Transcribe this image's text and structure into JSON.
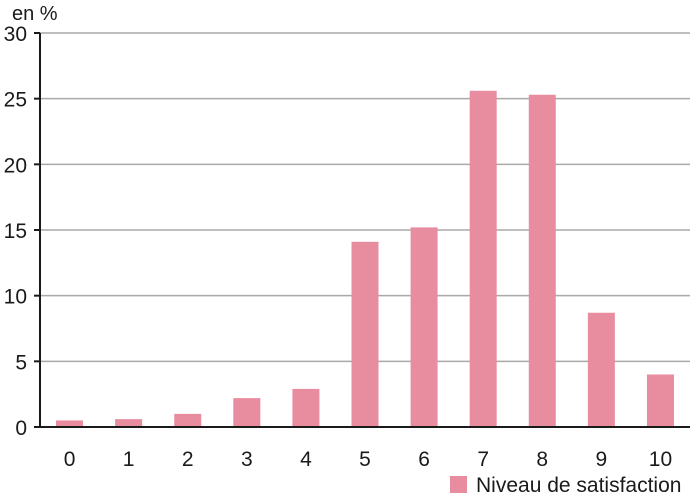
{
  "chart_data": {
    "type": "bar",
    "ylabel": "en %",
    "categories": [
      "0",
      "1",
      "2",
      "3",
      "4",
      "5",
      "6",
      "7",
      "8",
      "9",
      "10"
    ],
    "series": [
      {
        "name": "Niveau de satisfaction",
        "values": [
          0.5,
          0.6,
          1.0,
          2.2,
          2.9,
          14.1,
          15.2,
          25.6,
          25.3,
          8.7,
          4.0
        ],
        "color": "#e88ca0"
      }
    ],
    "ylim": [
      0,
      30
    ],
    "yticks": [
      "0",
      "5",
      "10",
      "15",
      "20",
      "25",
      "30"
    ],
    "grid": true,
    "legend_position": "bottom-right"
  }
}
